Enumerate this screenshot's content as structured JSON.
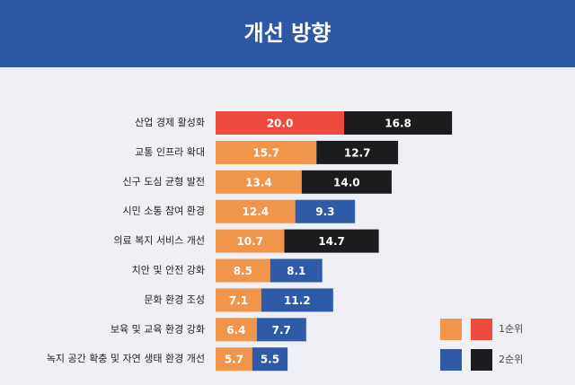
{
  "chart_data": {
    "type": "stacked-bar-horizontal",
    "title": "개선 방향",
    "categories": [
      "산업 경제 활성화",
      "교통 인프라 확대",
      "신구 도심 균형 발전",
      "시민 소통 참여 환경",
      "의료 복지 서비스 개선",
      "치안 및 안전 강화",
      "문화 환경 조성",
      "보육 및 교육 환경 강화",
      "녹지 공간 확충 및 자연 생태 환경 개선"
    ],
    "series": [
      {
        "name": "1순위",
        "color": "#f0954a",
        "colors": [
          "#ee4b3e",
          "#f0954a",
          "#f0954a",
          "#f0954a",
          "#f0954a",
          "#f0954a",
          "#f0954a",
          "#f0954a",
          "#f0954a"
        ],
        "values": [
          20.0,
          15.7,
          13.4,
          12.4,
          10.7,
          8.5,
          7.1,
          6.4,
          5.7
        ],
        "value_labels": [
          "20.0",
          "15.7",
          "13.4",
          "12.4",
          "10.7",
          "8.5",
          "7.1",
          "6.4",
          "5.7"
        ]
      },
      {
        "name": "2순위",
        "color": "#2f5aa8",
        "colors": [
          "#1c1c1e",
          "#1c1c1e",
          "#1c1c1e",
          "#2f5aa8",
          "#1c1c1e",
          "#2f5aa8",
          "#2f5aa8",
          "#2f5aa8",
          "#2f5aa8"
        ],
        "values": [
          16.8,
          12.7,
          14.0,
          9.3,
          14.7,
          8.1,
          11.2,
          7.7,
          5.5
        ],
        "value_labels": [
          "16.8",
          "12.7",
          "14.0",
          "9.3",
          "14.7",
          "8.1",
          "11.2",
          "7.7",
          "5.5"
        ]
      }
    ]
  }
}
